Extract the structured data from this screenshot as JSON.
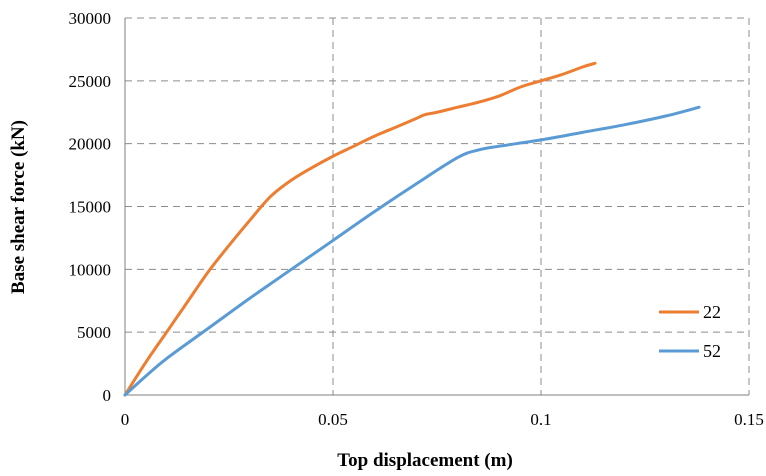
{
  "chart_data": {
    "type": "line",
    "title": "",
    "xlabel": "Top  displacement (m)",
    "ylabel": "Base  shear force (kN)",
    "xlim": [
      0,
      0.15
    ],
    "ylim": [
      0,
      30000
    ],
    "xticks": [
      0,
      0.05,
      0.1,
      0.15
    ],
    "xtick_labels": [
      "0",
      "0.05",
      "0.1",
      "0.15"
    ],
    "yticks": [
      0,
      5000,
      10000,
      15000,
      20000,
      25000,
      30000
    ],
    "ytick_labels": [
      "0",
      "5000",
      "10000",
      "15000",
      "20000",
      "25000",
      "30000"
    ],
    "grid": true,
    "legend_position": "right-bottom",
    "series": [
      {
        "name": "22",
        "color": "#ED7D31",
        "points": [
          [
            0,
            0
          ],
          [
            0.005,
            2600
          ],
          [
            0.01,
            5000
          ],
          [
            0.015,
            7400
          ],
          [
            0.02,
            9800
          ],
          [
            0.025,
            11900
          ],
          [
            0.03,
            13900
          ],
          [
            0.035,
            15800
          ],
          [
            0.04,
            17100
          ],
          [
            0.045,
            18100
          ],
          [
            0.05,
            19000
          ],
          [
            0.055,
            19800
          ],
          [
            0.06,
            20600
          ],
          [
            0.065,
            21300
          ],
          [
            0.07,
            22000
          ],
          [
            0.072,
            22300
          ],
          [
            0.075,
            22500
          ],
          [
            0.08,
            22900
          ],
          [
            0.085,
            23300
          ],
          [
            0.09,
            23800
          ],
          [
            0.095,
            24500
          ],
          [
            0.1,
            25000
          ],
          [
            0.105,
            25500
          ],
          [
            0.11,
            26100
          ],
          [
            0.113,
            26400
          ]
        ]
      },
      {
        "name": "52",
        "color": "#5B9BD5",
        "points": [
          [
            0,
            0
          ],
          [
            0.005,
            1500
          ],
          [
            0.01,
            2900
          ],
          [
            0.02,
            5300
          ],
          [
            0.03,
            7700
          ],
          [
            0.04,
            10000
          ],
          [
            0.05,
            12300
          ],
          [
            0.06,
            14600
          ],
          [
            0.07,
            16800
          ],
          [
            0.08,
            18900
          ],
          [
            0.085,
            19500
          ],
          [
            0.09,
            19800
          ],
          [
            0.1,
            20300
          ],
          [
            0.11,
            20900
          ],
          [
            0.12,
            21500
          ],
          [
            0.13,
            22200
          ],
          [
            0.138,
            22900
          ]
        ]
      }
    ]
  }
}
